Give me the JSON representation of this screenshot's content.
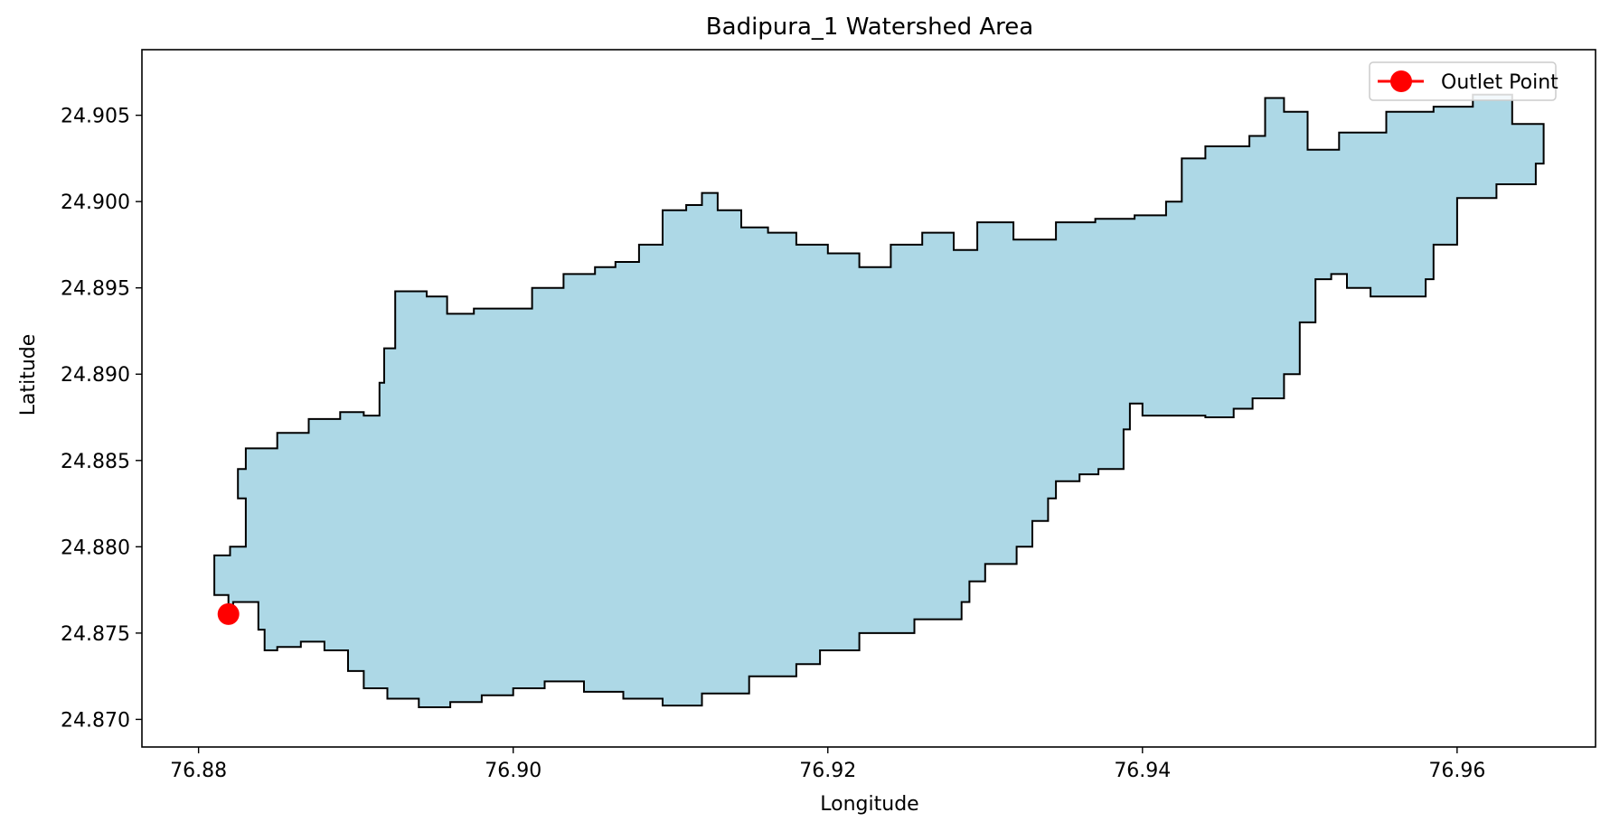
{
  "chart_data": {
    "type": "area",
    "title": "Badipura_1 Watershed Area",
    "xlabel": "Longitude",
    "ylabel": "Latitude",
    "xlim": [
      76.8764,
      76.9688
    ],
    "ylim": [
      24.8684,
      24.9088
    ],
    "xticks": [
      "76.88",
      "76.90",
      "76.92",
      "76.94",
      "76.96"
    ],
    "xtick_values": [
      76.88,
      76.9,
      76.92,
      76.94,
      76.96
    ],
    "yticks": [
      "24.870",
      "24.875",
      "24.880",
      "24.885",
      "24.890",
      "24.895",
      "24.900",
      "24.905"
    ],
    "ytick_values": [
      24.87,
      24.875,
      24.88,
      24.885,
      24.89,
      24.895,
      24.9,
      24.905
    ],
    "grid": false,
    "legend_position": "top-right",
    "series": [
      {
        "name": "Watershed",
        "fill": "#add8e6",
        "edge": "#000000",
        "boundary": [
          [
            76.8819,
            24.8761
          ],
          [
            76.8819,
            24.8772
          ],
          [
            76.881,
            24.8778
          ],
          [
            76.881,
            24.8795
          ],
          [
            76.882,
            24.88
          ],
          [
            76.883,
            24.881
          ],
          [
            76.883,
            24.8828
          ],
          [
            76.8825,
            24.8845
          ],
          [
            76.883,
            24.8857
          ],
          [
            76.885,
            24.8866
          ],
          [
            76.887,
            24.8874
          ],
          [
            76.889,
            24.8878
          ],
          [
            76.8905,
            24.8876
          ],
          [
            76.8915,
            24.8895
          ],
          [
            76.8918,
            24.8915
          ],
          [
            76.8925,
            24.8948
          ],
          [
            76.8945,
            24.8945
          ],
          [
            76.8958,
            24.8935
          ],
          [
            76.8975,
            24.8938
          ],
          [
            76.8998,
            24.8938
          ],
          [
            76.9012,
            24.895
          ],
          [
            76.9032,
            24.8958
          ],
          [
            76.9052,
            24.8962
          ],
          [
            76.9065,
            24.8965
          ],
          [
            76.908,
            24.8975
          ],
          [
            76.9095,
            24.8995
          ],
          [
            76.911,
            24.8998
          ],
          [
            76.912,
            24.9005
          ],
          [
            76.913,
            24.8995
          ],
          [
            76.9145,
            24.8985
          ],
          [
            76.9162,
            24.8982
          ],
          [
            76.918,
            24.8975
          ],
          [
            76.92,
            24.897
          ],
          [
            76.922,
            24.8962
          ],
          [
            76.924,
            24.8975
          ],
          [
            76.926,
            24.8982
          ],
          [
            76.928,
            24.8972
          ],
          [
            76.9295,
            24.8988
          ],
          [
            76.9318,
            24.8978
          ],
          [
            76.9345,
            24.8988
          ],
          [
            76.937,
            24.899
          ],
          [
            76.9395,
            24.8992
          ],
          [
            76.9415,
            24.9
          ],
          [
            76.9425,
            24.9025
          ],
          [
            76.944,
            24.9032
          ],
          [
            76.9468,
            24.9038
          ],
          [
            76.9478,
            24.906
          ],
          [
            76.949,
            24.9052
          ],
          [
            76.9505,
            24.903
          ],
          [
            76.9525,
            24.904
          ],
          [
            76.9555,
            24.9052
          ],
          [
            76.9585,
            24.9055
          ],
          [
            76.961,
            24.9062
          ],
          [
            76.9635,
            24.9045
          ],
          [
            76.9655,
            24.9022
          ],
          [
            76.965,
            24.901
          ],
          [
            76.9625,
            24.9002
          ],
          [
            76.96,
            24.8975
          ],
          [
            76.9585,
            24.8955
          ],
          [
            76.958,
            24.8945
          ],
          [
            76.9545,
            24.895
          ],
          [
            76.953,
            24.8958
          ],
          [
            76.952,
            24.8955
          ],
          [
            76.951,
            24.893
          ],
          [
            76.95,
            24.8915
          ],
          [
            76.95,
            24.89
          ],
          [
            76.949,
            24.8886
          ],
          [
            76.947,
            24.888
          ],
          [
            76.9458,
            24.8875
          ],
          [
            76.944,
            24.8876
          ],
          [
            76.9418,
            24.8876
          ],
          [
            76.94,
            24.8883
          ],
          [
            76.9392,
            24.8868
          ],
          [
            76.9388,
            24.8845
          ],
          [
            76.9372,
            24.8842
          ],
          [
            76.936,
            24.8838
          ],
          [
            76.9345,
            24.8828
          ],
          [
            76.934,
            24.8815
          ],
          [
            76.933,
            24.88
          ],
          [
            76.932,
            24.879
          ],
          [
            76.93,
            24.878
          ],
          [
            76.929,
            24.8768
          ],
          [
            76.9285,
            24.8758
          ],
          [
            76.9255,
            24.875
          ],
          [
            76.922,
            24.874
          ],
          [
            76.9195,
            24.8732
          ],
          [
            76.918,
            24.8725
          ],
          [
            76.915,
            24.8715
          ],
          [
            76.912,
            24.8708
          ],
          [
            76.9095,
            24.8712
          ],
          [
            76.907,
            24.8716
          ],
          [
            76.9045,
            24.8722
          ],
          [
            76.902,
            24.8718
          ],
          [
            76.9,
            24.8714
          ],
          [
            76.898,
            24.871
          ],
          [
            76.896,
            24.8707
          ],
          [
            76.894,
            24.8712
          ],
          [
            76.892,
            24.8718
          ],
          [
            76.8905,
            24.8728
          ],
          [
            76.8895,
            24.874
          ],
          [
            76.888,
            24.8745
          ],
          [
            76.8865,
            24.8742
          ],
          [
            76.885,
            24.874
          ],
          [
            76.8842,
            24.8752
          ],
          [
            76.8838,
            24.8768
          ],
          [
            76.8828,
            24.8768
          ],
          [
            76.8822,
            24.876
          ]
        ]
      }
    ],
    "outlet": {
      "name": "Outlet Point",
      "x": 76.8819,
      "y": 24.8761,
      "color": "#ff0000"
    },
    "legend": [
      {
        "label": "Outlet Point",
        "color": "#ff0000",
        "marker": "circle"
      }
    ]
  }
}
